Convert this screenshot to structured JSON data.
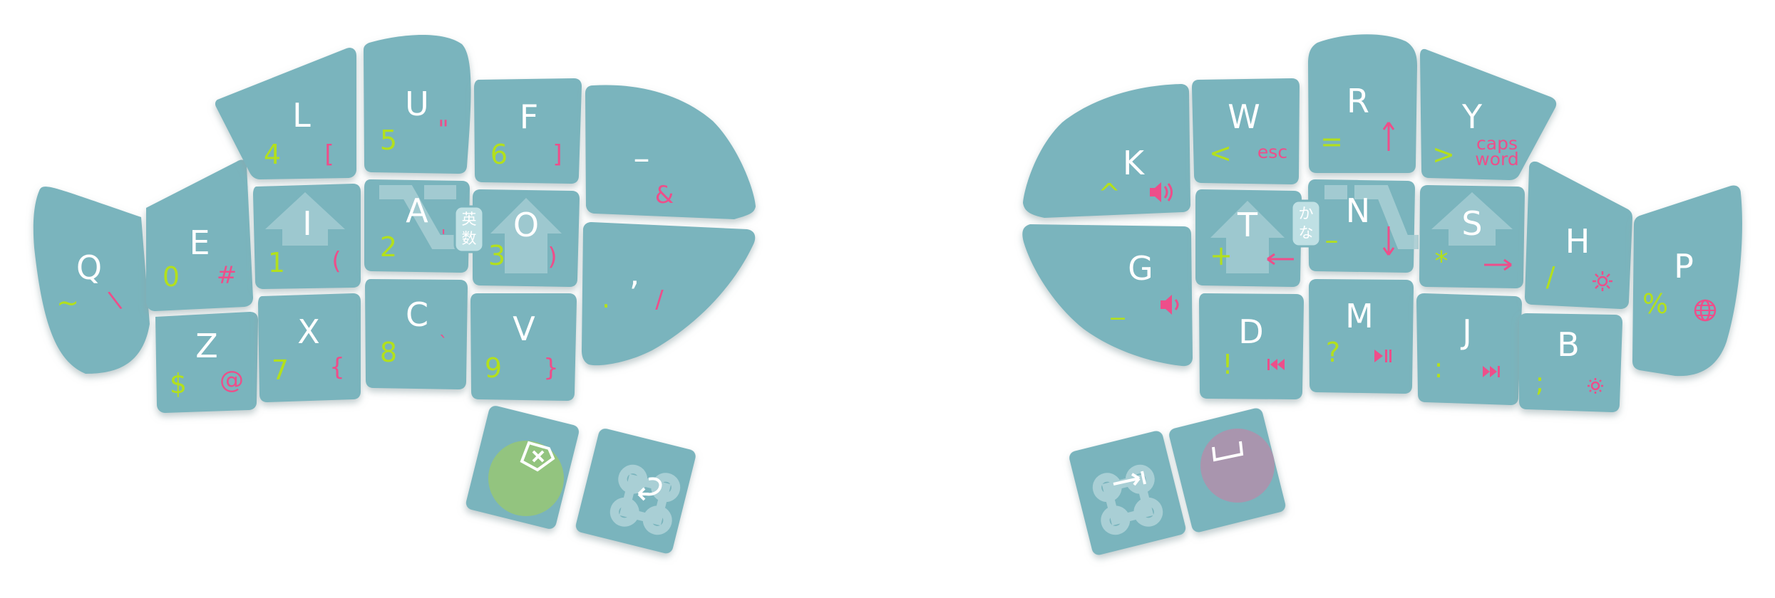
{
  "keyboard": {
    "colors": {
      "key": "#7ab4bd",
      "key_edge": "#6aa3ac",
      "shadow": "#b7c4c6",
      "main_legend": "#ffffff",
      "number_legend": "#b3e01c",
      "symbol_legend": "#ee4e8a",
      "hold_icon": "#a9cfd5",
      "backspace_circle": "#93c47f",
      "space_circle": "#a995ae"
    },
    "left": {
      "keys": [
        {
          "id": "q",
          "main": "Q",
          "secondary": "~",
          "tertiary": "\\"
        },
        {
          "id": "e",
          "main": "E",
          "secondary": "0",
          "tertiary": "#"
        },
        {
          "id": "z",
          "main": "Z",
          "secondary": "$",
          "tertiary": "@"
        },
        {
          "id": "l",
          "main": "L",
          "secondary": "4",
          "tertiary": "["
        },
        {
          "id": "i",
          "main": "I",
          "secondary": "1",
          "tertiary": "(",
          "hold": "shift-icon"
        },
        {
          "id": "x",
          "main": "X",
          "secondary": "7",
          "tertiary": "{"
        },
        {
          "id": "u",
          "main": "U",
          "secondary": "5",
          "tertiary": "\""
        },
        {
          "id": "a",
          "main": "A",
          "secondary": "2",
          "tertiary": "'",
          "hold": "option-icon"
        },
        {
          "id": "c",
          "main": "C",
          "secondary": "8",
          "tertiary": "`"
        },
        {
          "id": "f",
          "main": "F",
          "secondary": "6",
          "tertiary": "]"
        },
        {
          "id": "o",
          "main": "O",
          "secondary": "3",
          "tertiary": ")",
          "hold": "shift-icon"
        },
        {
          "id": "v",
          "main": "V",
          "secondary": "9",
          "tertiary": "}"
        },
        {
          "id": "dash",
          "main": "–",
          "secondary": "",
          "tertiary": "&"
        },
        {
          "id": "comma",
          "main": ",",
          "secondary": ".",
          "tertiary": "/"
        }
      ],
      "ime_badge": [
        "英",
        "数"
      ],
      "thumbs": [
        {
          "id": "backspace",
          "icon": "backspace-icon",
          "color": "#93c47f"
        },
        {
          "id": "enter-cmd",
          "icon": "command-icon",
          "secondary_icon": "enter-icon"
        }
      ]
    },
    "right": {
      "keys": [
        {
          "id": "k",
          "main": "K",
          "secondary": "^",
          "tertiary": "volume-up-icon"
        },
        {
          "id": "g",
          "main": "G",
          "secondary": "_",
          "tertiary": "volume-down-icon"
        },
        {
          "id": "w",
          "main": "W",
          "secondary": "<",
          "tertiary": "esc"
        },
        {
          "id": "t",
          "main": "T",
          "secondary": "+",
          "tertiary": "left-arrow-icon",
          "hold": "shift-icon"
        },
        {
          "id": "d",
          "main": "D",
          "secondary": "!",
          "tertiary": "prev-track-icon"
        },
        {
          "id": "r",
          "main": "R",
          "secondary": "=",
          "tertiary": "up-arrow-icon"
        },
        {
          "id": "n",
          "main": "N",
          "secondary": "–",
          "tertiary": "down-arrow-icon",
          "hold": "option-icon"
        },
        {
          "id": "m",
          "main": "M",
          "secondary": "?",
          "tertiary": "play-pause-icon"
        },
        {
          "id": "y",
          "main": "Y",
          "secondary": ">",
          "tertiary": "caps word"
        },
        {
          "id": "s",
          "main": "S",
          "secondary": "*",
          "tertiary": "right-arrow-icon",
          "hold": "shift-icon"
        },
        {
          "id": "j",
          "main": "J",
          "secondary": ":",
          "tertiary": "next-track-icon"
        },
        {
          "id": "h",
          "main": "H",
          "secondary": "/",
          "tertiary": "brightness-up-icon"
        },
        {
          "id": "b",
          "main": "B",
          "secondary": ";",
          "tertiary": "brightness-down-icon"
        },
        {
          "id": "p",
          "main": "P",
          "secondary": "%",
          "tertiary": "globe-icon"
        }
      ],
      "ime_badge": [
        "か",
        "な"
      ],
      "thumbs": [
        {
          "id": "tab-cmd",
          "icon": "command-icon",
          "secondary_icon": "tab-icon"
        },
        {
          "id": "space",
          "icon": "space-icon",
          "color": "#a995ae"
        }
      ]
    }
  }
}
